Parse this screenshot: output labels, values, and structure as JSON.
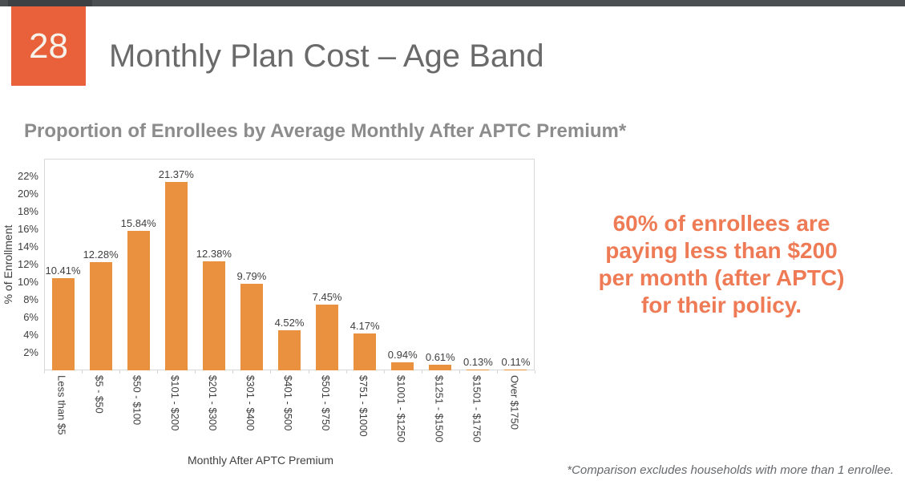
{
  "slide": {
    "number": "28",
    "title": "Monthly Plan Cost – Age Band",
    "callout_lines": [
      "60% of enrollees are",
      "paying less than $200",
      "per month (after APTC)",
      "for their policy."
    ],
    "footnote": "*Comparison excludes households with more than 1 enrollee."
  },
  "chart_data": {
    "type": "bar",
    "title": "Proportion of Enrollees by Average Monthly After APTC Premium*",
    "categories": [
      "Less than $5",
      "$5 - $50",
      "$50 - $100",
      "$101 - $200",
      "$201 - $300",
      "$301 - $400",
      "$401 - $500",
      "$501 - $750",
      "$751 - $1000",
      "$1001 - $1250",
      "$1251 - $1500",
      "$1501 - $1750",
      "Over $1750"
    ],
    "values": [
      10.41,
      12.28,
      15.84,
      21.37,
      12.38,
      9.79,
      4.52,
      7.45,
      4.17,
      0.94,
      0.61,
      0.13,
      0.11
    ],
    "bar_labels": [
      "10.41%",
      "12.28%",
      "15.84%",
      "21.37%",
      "12.38%",
      "9.79%",
      "4.52%",
      "7.45%",
      "4.17%",
      "0.94%",
      "0.61%",
      "0.13%",
      "0.11%"
    ],
    "xlabel": "Monthly After APTC Premium",
    "ylabel": "% of Enrollment",
    "ylim": [
      0,
      24
    ],
    "yticks": [
      "2%",
      "4%",
      "6%",
      "8%",
      "10%",
      "12%",
      "14%",
      "16%",
      "18%",
      "20%",
      "22%"
    ],
    "ytick_values": [
      2,
      4,
      6,
      8,
      10,
      12,
      14,
      16,
      18,
      20,
      22
    ],
    "grid": false,
    "legend": false,
    "bar_color": "#E9913F"
  },
  "colors": {
    "top_bar": "#4B4F52",
    "top_bar_dark": "#3D4144",
    "slide_number_bg": "#E8613B",
    "slide_number_text": "#F7F3EA",
    "title_text": "#6A6A6A",
    "subtitle_text": "#8C8C8C",
    "bar": "#E9913F",
    "axis_text": "#3F3F3F",
    "plot_border": "#D8D8D8",
    "callout_text": "#EE7B55",
    "footnote_text": "#66696D"
  }
}
